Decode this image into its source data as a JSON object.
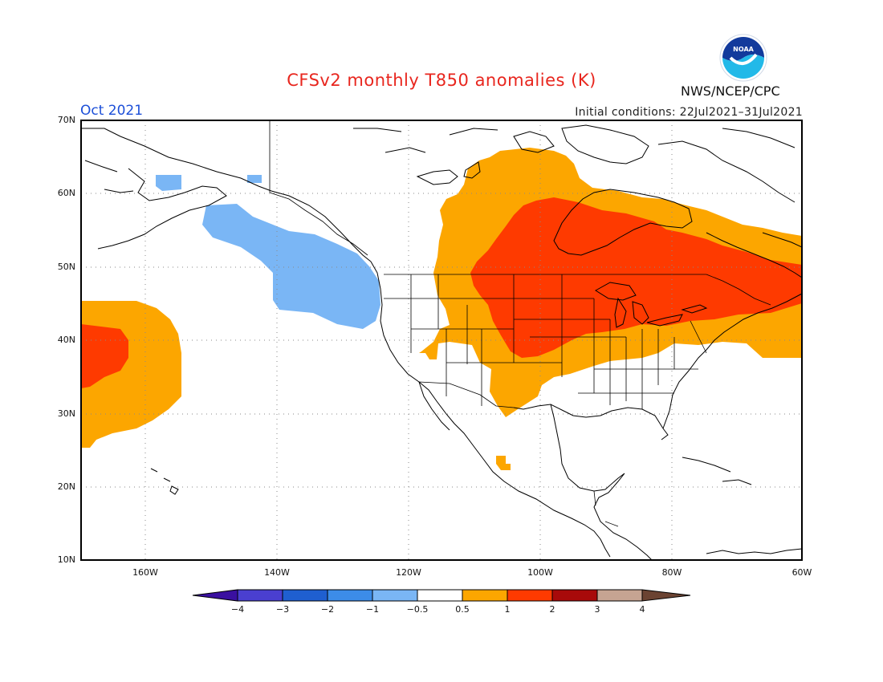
{
  "header": {
    "title": "CFSv2 monthly T850 anomalies (K)",
    "month": "Oct 2021",
    "initial_conditions": "Initial conditions: 22Jul2021–31Jul2021",
    "agency": "NWS/NCEP/CPC",
    "logo_text": "NOAA"
  },
  "map": {
    "lat_labels": [
      "70N",
      "60N",
      "50N",
      "40N",
      "30N",
      "20N",
      "10N"
    ],
    "lon_labels": [
      "160W",
      "140W",
      "120W",
      "100W",
      "80W",
      "60W"
    ],
    "anomaly_regions": [
      {
        "name": "warm-central-us-ne-canada",
        "level": "0.5 to 1"
      },
      {
        "name": "hot-great-lakes-canada",
        "level": "1 to 2"
      },
      {
        "name": "warm-pacific-subtropics",
        "level": "0.5 to 1"
      },
      {
        "name": "hot-pacific-subtropics",
        "level": "1 to 2"
      },
      {
        "name": "cool-gulf-of-alaska",
        "level": "-1 to -0.5"
      }
    ]
  },
  "colorbar": {
    "ticks": [
      "−4",
      "−3",
      "−2",
      "−1",
      "−0.5",
      "0.5",
      "1",
      "2",
      "3",
      "4"
    ],
    "colors": [
      "#3a10a0",
      "#4a3fd0",
      "#1f5fd0",
      "#3c8ce8",
      "#7ab6f5",
      "#ffffff",
      "#fca600",
      "#fe3a00",
      "#a80a0a",
      "#c6a492",
      "#6b4332"
    ]
  }
}
